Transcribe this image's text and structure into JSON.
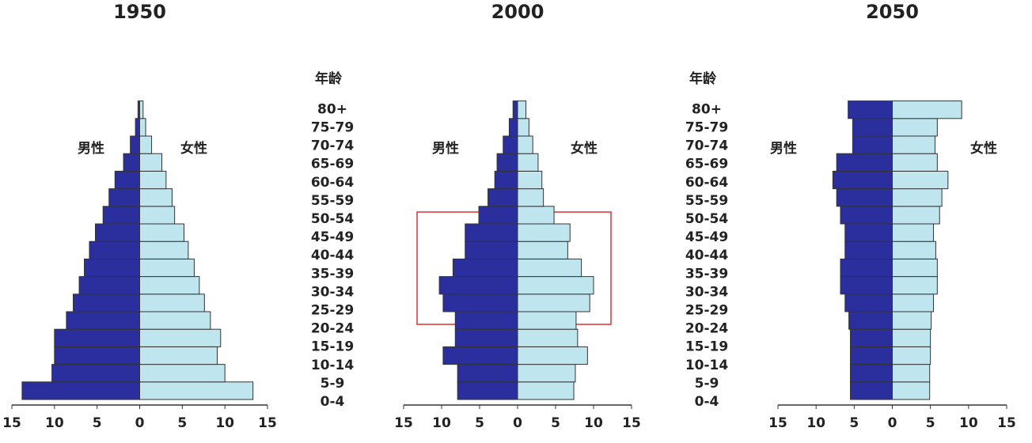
{
  "chart_data": [
    {
      "type": "pyramid",
      "title": "1950",
      "category_title": "年龄",
      "categories": [
        "0-4",
        "5-9",
        "10-14",
        "15-19",
        "20-24",
        "25-29",
        "30-34",
        "35-39",
        "40-44",
        "45-49",
        "50-54",
        "55-59",
        "60-64",
        "65-69",
        "70-74",
        "75-79",
        "80+"
      ],
      "series": [
        {
          "name": "男性",
          "color": "#2b2f9e",
          "direction": "left",
          "values": [
            13.8,
            10.3,
            10,
            10,
            8.6,
            7.8,
            7.1,
            6.5,
            5.9,
            5.2,
            4.3,
            3.6,
            2.9,
            1.9,
            1.1,
            0.5,
            0.2
          ]
        },
        {
          "name": "女性",
          "color": "#bfe6ef",
          "direction": "right",
          "values": [
            13.3,
            10,
            9.1,
            9.5,
            8.3,
            7.6,
            7,
            6.4,
            5.7,
            5.2,
            4.1,
            3.8,
            3.1,
            2.6,
            1.4,
            0.7,
            0.4
          ]
        }
      ],
      "xlim": [
        -15,
        15
      ],
      "xticks": [
        {
          "value": -15,
          "label": "15"
        },
        {
          "value": -10,
          "label": "10"
        },
        {
          "value": -5,
          "label": "5"
        },
        0,
        5,
        10,
        15
      ]
    },
    {
      "type": "pyramid",
      "title": "2000",
      "category_title": "年龄",
      "categories": [
        "0-4",
        "5-9",
        "10-14",
        "15-19",
        "20-24",
        "25-29",
        "30-34",
        "35-39",
        "40-44",
        "45-49",
        "50-54",
        "55-59",
        "60-64",
        "65-69",
        "70-74",
        "75-79",
        "80+"
      ],
      "series": [
        {
          "name": "男性",
          "color": "#2b2f9e",
          "direction": "left",
          "values": [
            7.9,
            7.9,
            9.8,
            8.2,
            8.2,
            9.8,
            10.3,
            8.5,
            6.9,
            6.9,
            5.1,
            3.9,
            3,
            2.7,
            1.9,
            1.1,
            0.6
          ]
        },
        {
          "name": "女性",
          "color": "#bfe6ef",
          "direction": "right",
          "values": [
            7.4,
            7.6,
            9.2,
            7.9,
            7.7,
            9.5,
            10,
            8.4,
            6.6,
            6.9,
            4.8,
            3.4,
            3.2,
            2.7,
            2,
            1.5,
            1.1
          ]
        }
      ],
      "xlim": [
        -15,
        15
      ],
      "xticks": [
        {
          "value": -15,
          "label": "15"
        },
        {
          "value": -10,
          "label": "10"
        },
        {
          "value": -5,
          "label": "5"
        },
        0,
        5,
        10,
        15
      ]
    },
    {
      "type": "pyramid",
      "title": "2050",
      "series": [
        {
          "name": "男性",
          "color": "#2b2f9e",
          "direction": "left",
          "values": [
            5.5,
            5.5,
            5.5,
            5.5,
            5.7,
            6.2,
            6.8,
            6.8,
            6.2,
            6.2,
            6.8,
            7.3,
            7.8,
            7.3,
            5.2,
            5.2,
            5.8
          ]
        },
        {
          "name": "女性",
          "color": "#bfe6ef",
          "direction": "right",
          "values": [
            4.9,
            4.9,
            5,
            5,
            5.1,
            5.4,
            5.9,
            5.9,
            5.7,
            5.4,
            6.2,
            6.5,
            7.3,
            5.9,
            5.6,
            5.9,
            9.1
          ]
        }
      ],
      "xlim": [
        -15,
        15
      ],
      "xticks": [
        {
          "value": -15,
          "label": "15"
        },
        {
          "value": -10,
          "label": "10"
        },
        {
          "value": -5,
          "label": "5"
        },
        0,
        5,
        10,
        15
      ]
    }
  ]
}
